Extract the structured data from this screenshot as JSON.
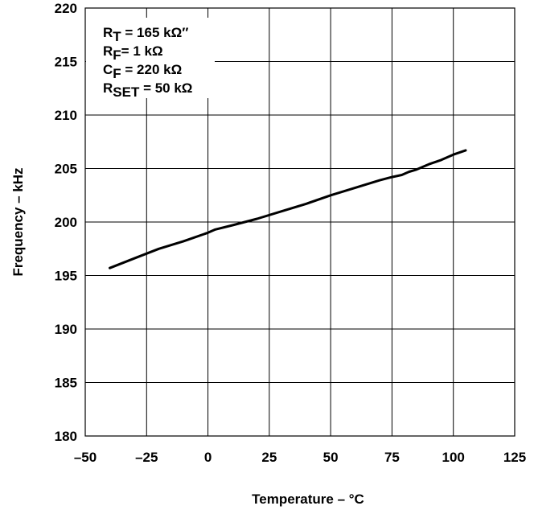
{
  "chart_data": {
    "type": "line",
    "xlabel": "Temperature –  °C",
    "ylabel": "Frequency – kHz",
    "xlim": [
      -50,
      125
    ],
    "ylim": [
      180,
      220
    ],
    "xticks": [
      -50,
      -25,
      0,
      25,
      50,
      75,
      100,
      125
    ],
    "yticks": [
      180,
      185,
      190,
      195,
      200,
      205,
      210,
      215,
      220
    ],
    "xtick_labels": [
      "–50",
      "–25",
      "0",
      "25",
      "50",
      "75",
      "100",
      "125"
    ],
    "ytick_labels": [
      "180",
      "185",
      "190",
      "195",
      "200",
      "205",
      "210",
      "215",
      "220"
    ],
    "grid": true,
    "annotations": [
      {
        "main": "R",
        "sub": "T",
        "rest": " = 165 kΩ″"
      },
      {
        "main": "R",
        "sub": "F",
        "rest": "= 1 kΩ"
      },
      {
        "main": "C",
        "sub": "F",
        "rest": " = 220 kΩ"
      },
      {
        "main": "R",
        "sub": "SET",
        "rest": " = 50 kΩ"
      }
    ],
    "series": [
      {
        "color": "#000000",
        "x": [
          -40,
          -30,
          -20,
          -10,
          0,
          3,
          10,
          20,
          30,
          40,
          50,
          60,
          70,
          75,
          79,
          82,
          85,
          90,
          95,
          100,
          105
        ],
        "y": [
          195.7,
          196.6,
          197.5,
          198.2,
          199.0,
          199.3,
          199.7,
          200.3,
          201.0,
          201.7,
          202.5,
          203.2,
          203.9,
          204.2,
          204.4,
          204.7,
          204.9,
          205.4,
          205.8,
          206.3,
          206.7
        ]
      }
    ]
  }
}
